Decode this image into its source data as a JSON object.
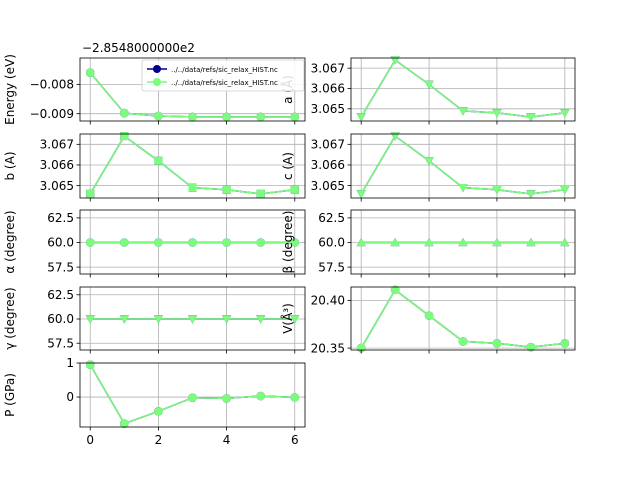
{
  "figure": {
    "offset_text": "−2.8548000000e2"
  },
  "legend": {
    "entries": [
      {
        "label": "../../data/refs/sic_relax_HIST.nc",
        "color": "#00008b",
        "marker": "circle"
      },
      {
        "label": "../../data/refs/sic_relax_HIST.nc",
        "color": "#7cfc7c",
        "marker": "circle"
      }
    ]
  },
  "chart_data": [
    {
      "id": "energy",
      "type": "line",
      "ylabel": "Energy (eV)",
      "x": [
        0,
        1,
        2,
        3,
        4,
        5,
        6
      ],
      "xlim": [
        -0.3,
        6.3
      ],
      "ylim": [
        -0.00925,
        -0.0071
      ],
      "yticks": [
        -0.008,
        -0.009
      ],
      "ytick_labels": [
        "−0.008",
        "−0.009"
      ],
      "series": [
        {
          "color": "#00008b",
          "marker": "circle",
          "values": [
            -0.0076,
            -0.00898,
            -0.00908,
            -0.00911,
            -0.00911,
            -0.00911,
            -0.00911
          ]
        },
        {
          "color": "#7cfc7c",
          "marker": "circle",
          "values": [
            -0.0076,
            -0.00898,
            -0.00908,
            -0.00911,
            -0.00911,
            -0.00911,
            -0.00911
          ]
        }
      ]
    },
    {
      "id": "a",
      "type": "line",
      "ylabel": "a (Å)",
      "x": [
        0,
        1,
        2,
        3,
        4,
        5,
        6
      ],
      "xlim": [
        -0.3,
        6.3
      ],
      "ylim": [
        3.0644,
        3.0675
      ],
      "yticks": [
        3.065,
        3.066,
        3.067
      ],
      "ytick_labels": [
        "3.065",
        "3.066",
        "3.067"
      ],
      "series": [
        {
          "color": "#00008b",
          "marker": "triangle-down",
          "values": [
            3.0646,
            3.0674,
            3.0662,
            3.0649,
            3.0648,
            3.0646,
            3.0648
          ]
        },
        {
          "color": "#7cfc7c",
          "marker": "triangle-down",
          "values": [
            3.0646,
            3.0674,
            3.0662,
            3.0649,
            3.0648,
            3.0646,
            3.0648
          ]
        }
      ]
    },
    {
      "id": "b",
      "type": "line",
      "ylabel": "b (A)",
      "x": [
        0,
        1,
        2,
        3,
        4,
        5,
        6
      ],
      "xlim": [
        -0.3,
        6.3
      ],
      "ylim": [
        3.0644,
        3.0675
      ],
      "yticks": [
        3.065,
        3.066,
        3.067
      ],
      "ytick_labels": [
        "3.065",
        "3.066",
        "3.067"
      ],
      "series": [
        {
          "color": "#00008b",
          "marker": "square",
          "values": [
            3.0646,
            3.0674,
            3.0662,
            3.0649,
            3.0648,
            3.0646,
            3.0648
          ]
        },
        {
          "color": "#7cfc7c",
          "marker": "square",
          "values": [
            3.0646,
            3.0674,
            3.0662,
            3.0649,
            3.0648,
            3.0646,
            3.0648
          ]
        }
      ]
    },
    {
      "id": "c",
      "type": "line",
      "ylabel": "c (A)",
      "x": [
        0,
        1,
        2,
        3,
        4,
        5,
        6
      ],
      "xlim": [
        -0.3,
        6.3
      ],
      "ylim": [
        3.0644,
        3.0675
      ],
      "yticks": [
        3.065,
        3.066,
        3.067
      ],
      "ytick_labels": [
        "3.065",
        "3.066",
        "3.067"
      ],
      "series": [
        {
          "color": "#00008b",
          "marker": "triangle-down",
          "values": [
            3.0646,
            3.0674,
            3.0662,
            3.0649,
            3.0648,
            3.0646,
            3.0648
          ]
        },
        {
          "color": "#7cfc7c",
          "marker": "triangle-down",
          "values": [
            3.0646,
            3.0674,
            3.0662,
            3.0649,
            3.0648,
            3.0646,
            3.0648
          ]
        }
      ]
    },
    {
      "id": "alpha",
      "type": "line",
      "ylabel": "α (degree)",
      "x": [
        0,
        1,
        2,
        3,
        4,
        5,
        6
      ],
      "xlim": [
        -0.3,
        6.3
      ],
      "ylim": [
        56.8,
        63.3
      ],
      "yticks": [
        57.5,
        60.0,
        62.5
      ],
      "ytick_labels": [
        "57.5",
        "60.0",
        "62.5"
      ],
      "series": [
        {
          "color": "#00008b",
          "marker": "circle",
          "values": [
            60,
            60,
            60,
            60,
            60,
            60,
            60
          ]
        },
        {
          "color": "#7cfc7c",
          "marker": "circle",
          "values": [
            60,
            60,
            60,
            60,
            60,
            60,
            60
          ]
        }
      ]
    },
    {
      "id": "beta",
      "type": "line",
      "ylabel": "β (degree)",
      "x": [
        0,
        1,
        2,
        3,
        4,
        5,
        6
      ],
      "xlim": [
        -0.3,
        6.3
      ],
      "ylim": [
        56.8,
        63.3
      ],
      "yticks": [
        57.5,
        60.0,
        62.5
      ],
      "ytick_labels": [
        "57.5",
        "60.0",
        "62.5"
      ],
      "series": [
        {
          "color": "#00008b",
          "marker": "triangle-up",
          "values": [
            60,
            60,
            60,
            60,
            60,
            60,
            60
          ]
        },
        {
          "color": "#7cfc7c",
          "marker": "triangle-up",
          "values": [
            60,
            60,
            60,
            60,
            60,
            60,
            60
          ]
        }
      ]
    },
    {
      "id": "gamma",
      "type": "line",
      "ylabel": "γ (degree)",
      "x": [
        0,
        1,
        2,
        3,
        4,
        5,
        6
      ],
      "xlim": [
        -0.3,
        6.3
      ],
      "ylim": [
        56.8,
        63.3
      ],
      "yticks": [
        57.5,
        60.0,
        62.5
      ],
      "ytick_labels": [
        "57.5",
        "60.0",
        "62.5"
      ],
      "series": [
        {
          "color": "#00008b",
          "marker": "triangle-down",
          "values": [
            60,
            60,
            60,
            60,
            60,
            60,
            60
          ]
        },
        {
          "color": "#7cfc7c",
          "marker": "triangle-down",
          "values": [
            60,
            60,
            60,
            60,
            60,
            60,
            60
          ]
        }
      ]
    },
    {
      "id": "volume",
      "type": "line",
      "ylabel": "V(Å³)",
      "x": [
        0,
        1,
        2,
        3,
        4,
        5,
        6
      ],
      "xlim": [
        -0.3,
        6.3
      ],
      "ylim": [
        20.348,
        20.414
      ],
      "yticks": [
        20.35,
        20.4
      ],
      "ytick_labels": [
        "20.35",
        "20.40"
      ],
      "series": [
        {
          "color": "#00008b",
          "marker": "circle",
          "values": [
            20.35,
            20.411,
            20.384,
            20.357,
            20.355,
            20.351,
            20.355
          ]
        },
        {
          "color": "#7cfc7c",
          "marker": "circle",
          "values": [
            20.35,
            20.411,
            20.384,
            20.357,
            20.355,
            20.351,
            20.355
          ]
        }
      ]
    },
    {
      "id": "pressure",
      "type": "line",
      "ylabel": "P (GPa)",
      "x": [
        0,
        1,
        2,
        3,
        4,
        5,
        6
      ],
      "xlim": [
        -0.3,
        6.3
      ],
      "ylim": [
        -0.88,
        1.0
      ],
      "yticks": [
        0,
        1
      ],
      "ytick_labels": [
        "0",
        "1"
      ],
      "xticks": [
        0,
        2,
        4,
        6
      ],
      "xtick_labels": [
        "0",
        "2",
        "4",
        "6"
      ],
      "series": [
        {
          "color": "#00008b",
          "marker": "circle",
          "values": [
            0.95,
            -0.78,
            -0.42,
            -0.02,
            -0.04,
            0.03,
            -0.01
          ]
        },
        {
          "color": "#7cfc7c",
          "marker": "circle",
          "values": [
            0.95,
            -0.78,
            -0.42,
            -0.02,
            -0.04,
            0.03,
            -0.01
          ]
        }
      ]
    }
  ]
}
